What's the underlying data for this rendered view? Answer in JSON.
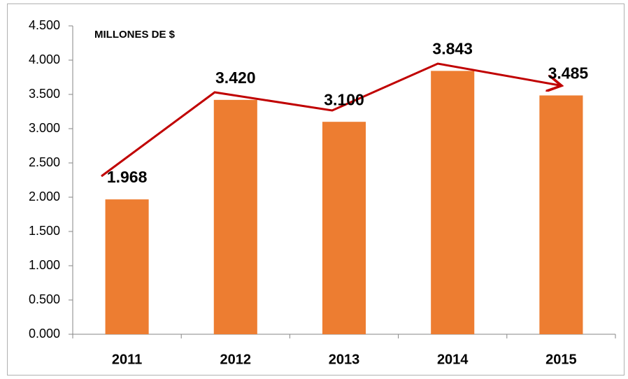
{
  "chart_data": {
    "type": "bar",
    "title": "MILLONES DE $",
    "categories": [
      "2011",
      "2012",
      "2013",
      "2014",
      "2015"
    ],
    "values": [
      1.968,
      3.42,
      3.1,
      3.843,
      3.485
    ],
    "value_labels": [
      "1.968",
      "3.420",
      "3.100",
      "3.843",
      "3.485"
    ],
    "color": "#ed7d31",
    "ylim": [
      0,
      4.5
    ],
    "yticks": [
      {
        "value": 0,
        "label": "0.000"
      },
      {
        "value": 0.5,
        "label": "0.500"
      },
      {
        "value": 1,
        "label": "1.000"
      },
      {
        "value": 1.5,
        "label": "1.500"
      },
      {
        "value": 2,
        "label": "2.000"
      },
      {
        "value": 2.5,
        "label": "2.500"
      },
      {
        "value": 3,
        "label": "3.000"
      },
      {
        "value": 3.5,
        "label": "3.500"
      },
      {
        "value": 4,
        "label": "4.000"
      },
      {
        "value": 4.5,
        "label": "4.500"
      }
    ],
    "grid": false
  }
}
